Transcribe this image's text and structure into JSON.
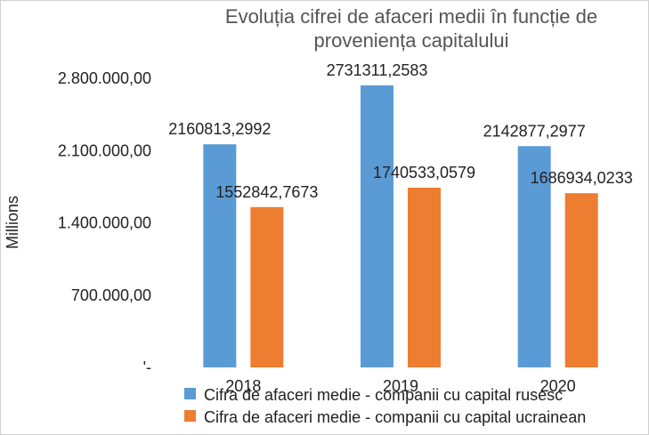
{
  "chart_data": {
    "type": "bar",
    "title": "Evoluția cifrei de afaceri medii în funcție de proveniența capitalului",
    "title_lines": [
      "Evoluția cifrei de afaceri medii în funcție de",
      "proveniența capitalului"
    ],
    "ylabel": "Millions",
    "ylim": [
      0,
      2800000
    ],
    "yticks": [
      0,
      700000,
      1400000,
      2100000,
      2800000
    ],
    "ytick_labels": [
      "'-",
      "700.000,00",
      "1.400.000,00",
      "2.100.000,00",
      "2.800.000,00"
    ],
    "categories": [
      "2018",
      "2019",
      "2020"
    ],
    "series": [
      {
        "name": "Cifra de afaceri medie - companii cu capital rusesc",
        "color": "#5b9bd5",
        "values": [
          2160813.2992,
          2731311.2583,
          2142877.2977
        ],
        "labels": [
          "2160813,2992",
          "2731311,2583",
          "2142877,2977"
        ]
      },
      {
        "name": "Cifra de afaceri medie - companii cu capital ucrainean",
        "color": "#ed7d31",
        "values": [
          1552842.7673,
          1740533.0579,
          1686934.0233
        ],
        "labels": [
          "1552842,7673",
          "1740533,0579",
          "1686934,0233"
        ]
      }
    ],
    "grid": false,
    "legend_position": "bottom"
  }
}
